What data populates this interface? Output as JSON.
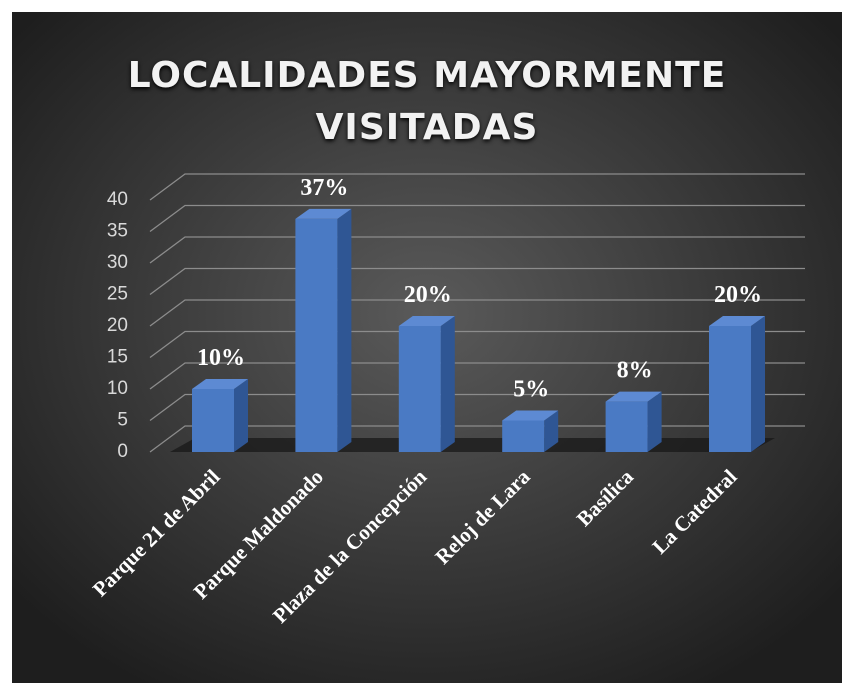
{
  "chart_data": {
    "type": "bar3d",
    "title": "LOCALIDADES MAYORMENTE VISITADAS",
    "categories": [
      "Parque 21 de Abril",
      "Parque Maldonado",
      "Plaza de la Concepción",
      "Reloj de Lara",
      "Basílica",
      "La Catedral"
    ],
    "values": [
      10,
      37,
      20,
      5,
      8,
      20
    ],
    "value_labels": [
      "10%",
      "37%",
      "20%",
      "5%",
      "8%",
      "20%"
    ],
    "color": "#4a7ac4",
    "ylim": [
      0,
      40
    ],
    "yticks": [
      0,
      5,
      10,
      15,
      20,
      25,
      30,
      35,
      40
    ],
    "grid": true
  }
}
